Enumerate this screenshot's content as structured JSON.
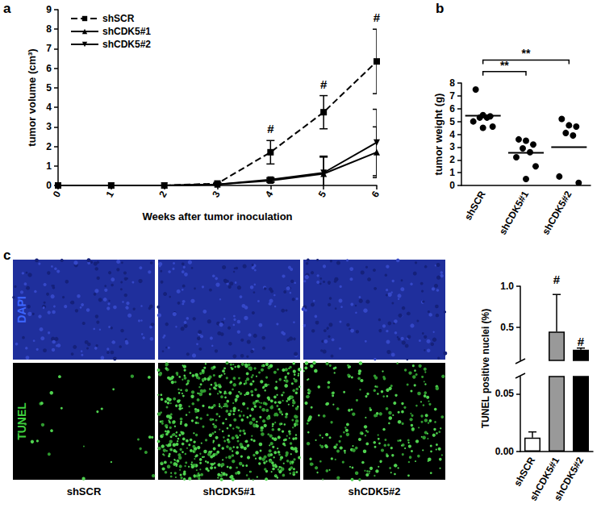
{
  "chart_data": [
    {
      "panel": "a",
      "type": "line",
      "x_label": "Weeks after tumor inoculation",
      "y_label": "tumor volume (cm³)",
      "x": [
        0,
        1,
        2,
        3,
        4,
        5,
        6
      ],
      "xlim": [
        0,
        6
      ],
      "xticks": [
        0,
        1,
        2,
        3,
        4,
        5,
        6
      ],
      "ylim": [
        0,
        9
      ],
      "yticks": [
        0,
        1,
        2,
        3,
        4,
        5,
        6,
        7,
        8,
        9
      ],
      "grid": false,
      "legend": "upper left",
      "series": [
        {
          "name": "shSCR",
          "color": "#000000",
          "marker": "square",
          "line_style": "dashed",
          "values": [
            0,
            0,
            0,
            0.1,
            1.7,
            3.75,
            6.35
          ],
          "errors": [
            0,
            0,
            0,
            0.05,
            0.6,
            0.85,
            1.65
          ]
        },
        {
          "name": "shCDK5#1",
          "color": "#000000",
          "marker": "triangle",
          "line_style": "solid",
          "values": [
            0,
            0,
            0,
            0.05,
            0.25,
            0.6,
            1.7
          ],
          "errors": [
            0,
            0,
            0,
            0,
            0.1,
            0.9,
            1.3
          ]
        },
        {
          "name": "shCDK5#2",
          "color": "#000000",
          "marker": "triangle-down",
          "line_style": "solid",
          "values": [
            0,
            0,
            0,
            0.05,
            0.3,
            0.65,
            2.2
          ],
          "errors": [
            0,
            0,
            0,
            0,
            0.1,
            0.8,
            1.7
          ]
        }
      ],
      "annotations": [
        {
          "x": 4,
          "y": 2.9,
          "text": "#"
        },
        {
          "x": 5,
          "y": 5.2,
          "text": "#"
        },
        {
          "x": 6,
          "y": 8.6,
          "text": "#"
        }
      ]
    },
    {
      "panel": "b",
      "type": "scatter",
      "y_label": "tumor weight (g)",
      "categories": [
        "shSCR",
        "shCDK5#1",
        "shCDK5#2"
      ],
      "values": [
        [
          7.5,
          5.5,
          5.4,
          5.3,
          5.3,
          5.0,
          4.6,
          4.5
        ],
        [
          3.6,
          3.5,
          3.2,
          2.9,
          2.6,
          2.2,
          1.5,
          0.5
        ],
        [
          5.2,
          4.7,
          4.6,
          4.1,
          3.9,
          0.7,
          0.2
        ]
      ],
      "means": [
        5.45,
        2.55,
        3.0
      ],
      "color": "#000000",
      "marker": "circle",
      "ylim": [
        0,
        8
      ],
      "yticks": [
        0,
        1,
        2,
        3,
        4,
        5,
        6,
        7,
        8
      ],
      "significance": [
        {
          "from": "shSCR",
          "to": "shCDK5#1",
          "y": 8.9,
          "label": "**"
        },
        {
          "from": "shSCR",
          "to": "shCDK5#2",
          "y": 9.8,
          "label": "**"
        }
      ]
    },
    {
      "type": "bar",
      "y_label": "TUNEL positive nuclei (%)",
      "categories": [
        "shSCR",
        "shCDK5#1",
        "shCDK5#2"
      ],
      "values": [
        0.012,
        0.45,
        0.23
      ],
      "errors": [
        0.005,
        0.45,
        0.02
      ],
      "colors": [
        "#ffffff",
        "#999999",
        "#000000"
      ],
      "ylim": [
        0,
        1.0
      ],
      "axis_break": [
        0.065,
        0.1
      ],
      "yticks": [
        {
          "value": 0,
          "label": "0.00"
        },
        {
          "value": 0.05,
          "label": "0.05"
        },
        0.5,
        {
          "value": 1.0,
          "label": "1.0"
        }
      ],
      "annotations": [
        {
          "category": "shCDK5#1",
          "y": 1.08,
          "text": "#"
        },
        {
          "category": "shCDK5#2",
          "y": 0.33,
          "text": "#"
        }
      ]
    }
  ],
  "image_panel": {
    "panel": "c",
    "row_labels": [
      "DAPI",
      "TUNEL"
    ],
    "column_labels": [
      "shSCR",
      "shCDK5#1",
      "shCDK5#2"
    ]
  }
}
